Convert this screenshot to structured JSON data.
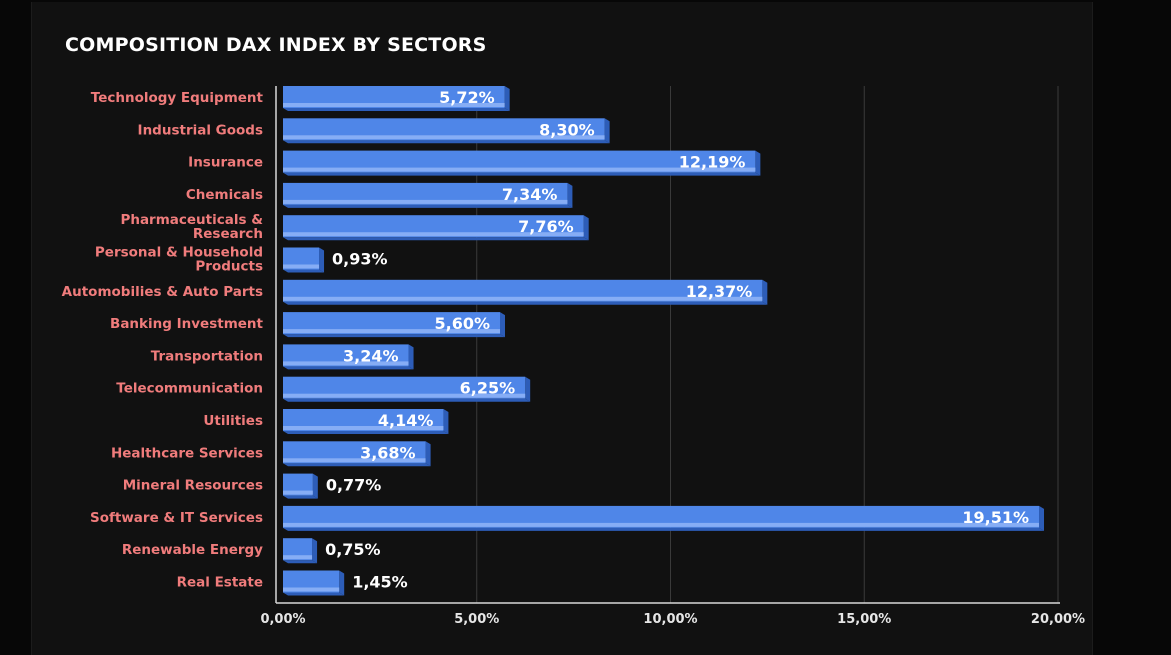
{
  "chart_data": {
    "type": "bar",
    "orientation": "horizontal",
    "title": "COMPOSITION DAX INDEX BY SECTORS",
    "categories": [
      "Technology Equipment",
      "Industrial Goods",
      "Insurance",
      "Chemicals",
      "Pharmaceuticals & Research",
      "Personal & Household Products",
      "Automobilies & Auto Parts",
      "Banking Investment",
      "Transportation",
      "Telecommunication",
      "Utilities",
      "Healthcare Services",
      "Mineral Resources",
      "Software & IT Services",
      "Renewable Energy",
      "Real Estate"
    ],
    "category_lines": [
      [
        "Technology Equipment"
      ],
      [
        "Industrial Goods"
      ],
      [
        "Insurance"
      ],
      [
        "Chemicals"
      ],
      [
        "Pharmaceuticals &",
        "Research"
      ],
      [
        "Personal & Household",
        "Products"
      ],
      [
        "Automobilies & Auto Parts"
      ],
      [
        "Banking Investment"
      ],
      [
        "Transportation"
      ],
      [
        "Telecommunication"
      ],
      [
        "Utilities"
      ],
      [
        "Healthcare Services"
      ],
      [
        "Mineral Resources"
      ],
      [
        "Software & IT Services"
      ],
      [
        "Renewable Energy"
      ],
      [
        "Real Estate"
      ]
    ],
    "values": [
      5.72,
      8.3,
      12.19,
      7.34,
      7.76,
      0.93,
      12.37,
      5.6,
      3.24,
      6.25,
      4.14,
      3.68,
      0.77,
      19.51,
      0.75,
      1.45
    ],
    "value_labels": [
      "5,72%",
      "8,30%",
      "12,19%",
      "7,34%",
      "7,76%",
      "0,93%",
      "12,37%",
      "5,60%",
      "3,24%",
      "6,25%",
      "4,14%",
      "3,68%",
      "0,77%",
      "19,51%",
      "0,75%",
      "1,45%"
    ],
    "xlim": [
      0,
      20
    ],
    "xticks": [
      0,
      5,
      10,
      15,
      20
    ],
    "xtick_labels": [
      "0,00%",
      "5,00%",
      "10,00%",
      "15,00%",
      "20,00%"
    ],
    "grid": true,
    "colors": {
      "bar": "#4f86e8",
      "bar_highlight": "#8fb4f7",
      "bar_shadow": "#2d5db8",
      "category_text": "#f07c7c",
      "value_text": "#ffffff",
      "grid": "#3a3a3a",
      "background": "#111111"
    }
  }
}
